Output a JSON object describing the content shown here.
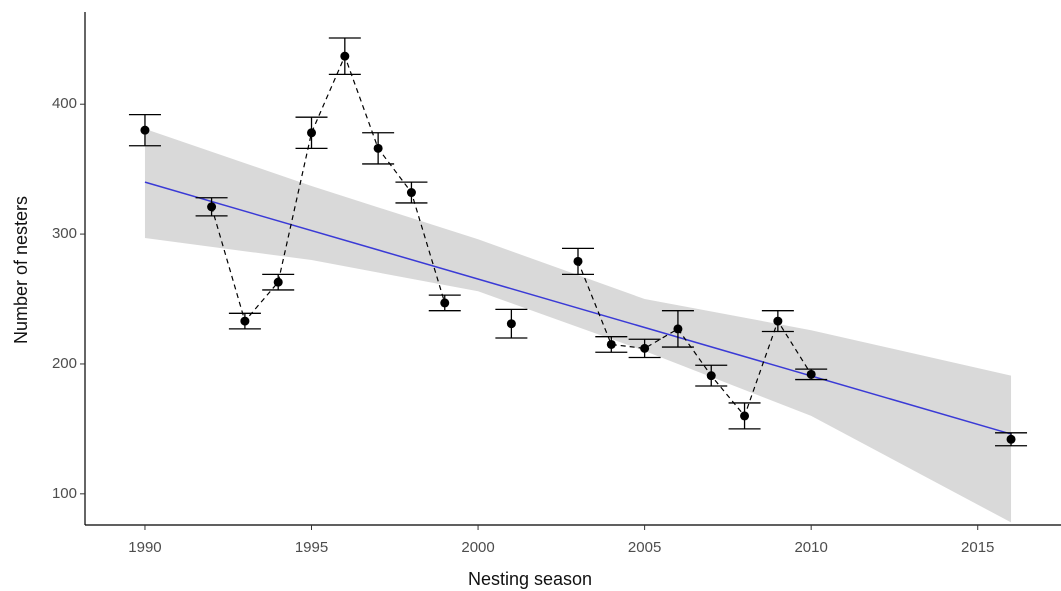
{
  "chart_data": {
    "type": "scatter",
    "xlabel": "Nesting season",
    "ylabel": "Number of nesters",
    "xlim": [
      1988.2,
      2017.5
    ],
    "ylim": [
      76,
      471
    ],
    "xticks": [
      1990,
      1995,
      2000,
      2005,
      2010,
      2015
    ],
    "yticks": [
      100,
      200,
      300,
      400
    ],
    "grid": false,
    "x": [
      1990,
      1991,
      1992,
      1993,
      1994,
      1995,
      1996,
      1997,
      1998,
      1999,
      2000,
      2001,
      2002,
      2003,
      2004,
      2005,
      2006,
      2007,
      2008,
      2009,
      2010,
      2011,
      2012,
      2013,
      2014,
      2015,
      2016
    ],
    "values": [
      380,
      null,
      321,
      233,
      263,
      378,
      437,
      366,
      332,
      247,
      null,
      231,
      null,
      279,
      215,
      212,
      227,
      191,
      160,
      233,
      192,
      null,
      null,
      null,
      null,
      null,
      142
    ],
    "errors": [
      12,
      null,
      7,
      6,
      6,
      12,
      14,
      12,
      8,
      6,
      null,
      11,
      null,
      10,
      6,
      7,
      14,
      8,
      10,
      8,
      4,
      null,
      null,
      null,
      null,
      null,
      5
    ],
    "color": "#000000",
    "fit": {
      "x": [
        1990,
        2016
      ],
      "values": [
        340,
        146
      ],
      "color": "#3a3ad6"
    },
    "band": {
      "x": [
        1990,
        1995,
        2000,
        2005,
        2010,
        2016
      ],
      "lower": [
        297,
        280,
        256,
        210,
        160,
        78
      ],
      "upper": [
        381,
        337,
        296,
        250,
        226,
        191
      ],
      "color": "#d9d9d9"
    }
  }
}
